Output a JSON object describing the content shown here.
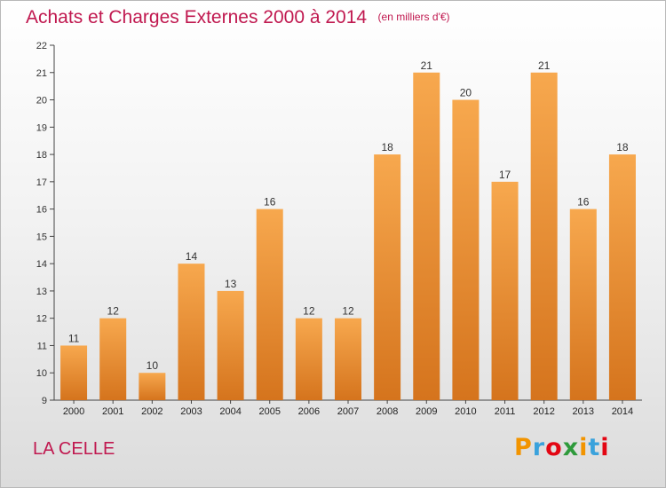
{
  "header": {
    "title": "Achats et Charges Externes 2000 à 2014",
    "unit": "(en milliers d'€)"
  },
  "footer": {
    "commune": "LA CELLE",
    "brand": "Proxiti",
    "brand_colors": [
      "#f29400",
      "#3aa2dc",
      "#e30613",
      "#2e9a3b",
      "#f29400",
      "#3aa2dc",
      "#e30613"
    ]
  },
  "colors": {
    "accent": "#c0184f",
    "bar_top": "#f7a84e",
    "bar_bottom": "#d5741d",
    "axis": "#444444",
    "grid": "#d6d6d6"
  },
  "chart_data": {
    "type": "bar",
    "title": "Achats et Charges Externes 2000 à 2014",
    "xlabel": "",
    "ylabel": "",
    "ylim": [
      9,
      22
    ],
    "yticks": [
      9,
      10,
      11,
      12,
      13,
      14,
      15,
      16,
      17,
      18,
      19,
      20,
      21,
      22
    ],
    "grid": false,
    "categories": [
      "2000",
      "2001",
      "2002",
      "2003",
      "2004",
      "2005",
      "2006",
      "2007",
      "2008",
      "2009",
      "2010",
      "2011",
      "2012",
      "2013",
      "2014"
    ],
    "values": [
      11,
      12,
      10,
      14,
      13,
      16,
      12,
      12,
      18,
      21,
      20,
      17,
      21,
      16,
      18
    ],
    "data_labels": [
      "11",
      "12",
      "10",
      "14",
      "13",
      "16",
      "12",
      "12",
      "18",
      "21",
      "20",
      "17",
      "21",
      "16",
      "18"
    ]
  }
}
